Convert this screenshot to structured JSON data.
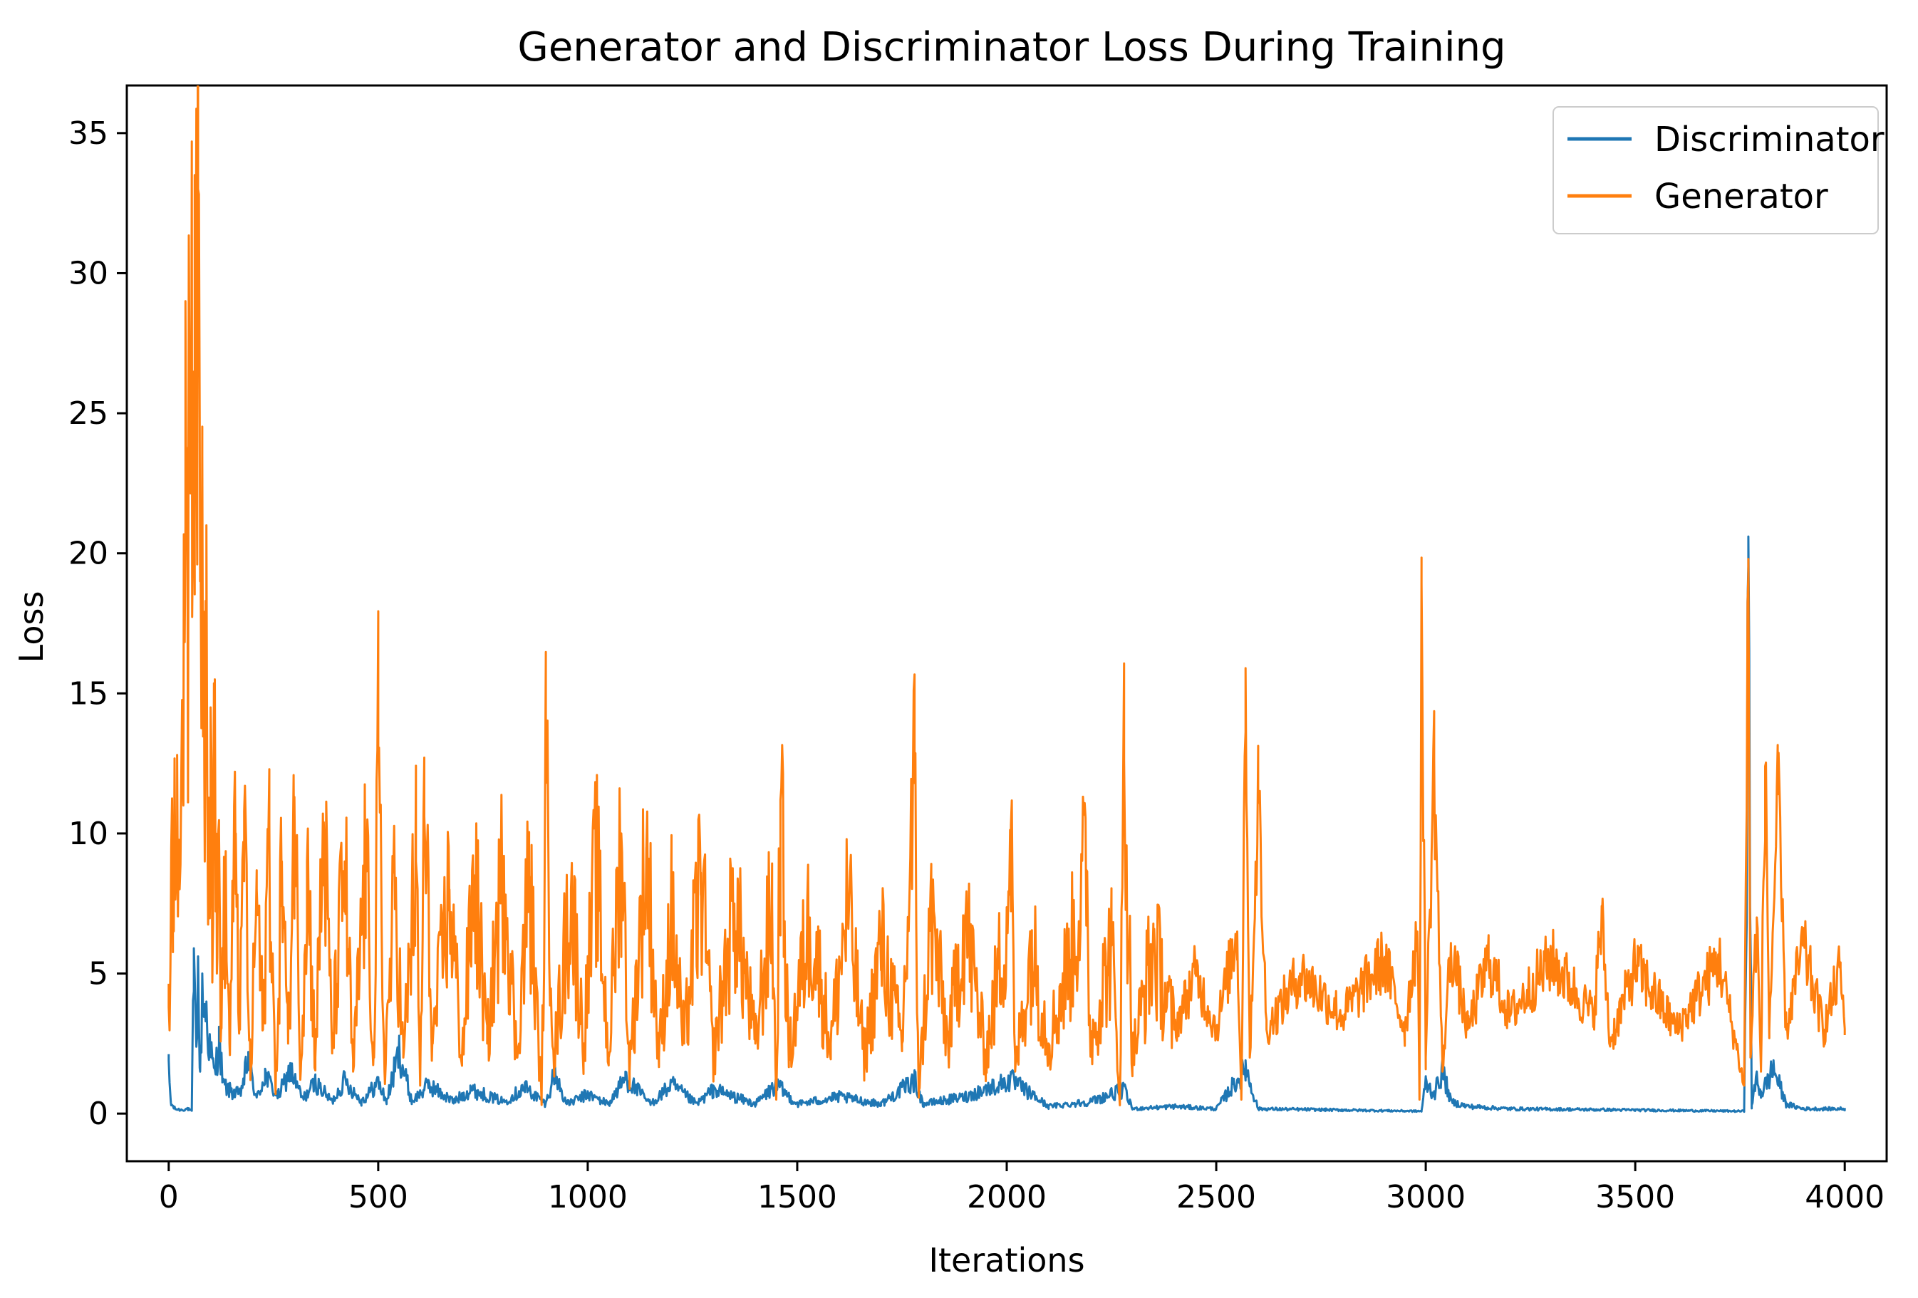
{
  "chart_data": {
    "type": "line",
    "title": "Generator and Discriminator Loss During Training",
    "xlabel": "Iterations",
    "ylabel": "Loss",
    "xlim": [
      -100,
      4100
    ],
    "ylim": [
      -1.7,
      36.7
    ],
    "xticks": [
      0,
      500,
      1000,
      1500,
      2000,
      2500,
      3000,
      3500,
      4000
    ],
    "xtick_labels": [
      "0",
      "500",
      "1000",
      "1500",
      "2000",
      "2500",
      "3000",
      "3500",
      "4000"
    ],
    "yticks": [
      0,
      5,
      10,
      15,
      20,
      25,
      30,
      35
    ],
    "ytick_labels": [
      "0",
      "5",
      "10",
      "15",
      "20",
      "25",
      "30",
      "35"
    ],
    "grid": false,
    "legend_position": "top-right",
    "series": [
      {
        "name": "Discriminator",
        "color": "#1f77b4",
        "points": [
          [
            0,
            1.9
          ],
          [
            5,
            0.4
          ],
          [
            15,
            0.2
          ],
          [
            30,
            0.15
          ],
          [
            45,
            0.2
          ],
          [
            55,
            0.1
          ],
          [
            60,
            5.9
          ],
          [
            65,
            3.0
          ],
          [
            70,
            5.6
          ],
          [
            75,
            1.5
          ],
          [
            80,
            5.0
          ],
          [
            90,
            4.0
          ],
          [
            100,
            2.5
          ],
          [
            110,
            1.6
          ],
          [
            120,
            3.1
          ],
          [
            130,
            1.2
          ],
          [
            150,
            0.9
          ],
          [
            170,
            0.8
          ],
          [
            190,
            2.2
          ],
          [
            210,
            0.6
          ],
          [
            230,
            1.6
          ],
          [
            260,
            0.7
          ],
          [
            290,
            1.8
          ],
          [
            320,
            0.6
          ],
          [
            350,
            1.3
          ],
          [
            390,
            0.5
          ],
          [
            420,
            1.4
          ],
          [
            460,
            0.5
          ],
          [
            500,
            1.3
          ],
          [
            520,
            0.5
          ],
          [
            550,
            2.6
          ],
          [
            580,
            0.5
          ],
          [
            620,
            1.2
          ],
          [
            680,
            0.5
          ],
          [
            720,
            1.0
          ],
          [
            800,
            0.5
          ],
          [
            850,
            1.1
          ],
          [
            900,
            0.4
          ],
          [
            920,
            1.7
          ],
          [
            950,
            0.4
          ],
          [
            1000,
            0.8
          ],
          [
            1050,
            0.4
          ],
          [
            1090,
            1.5
          ],
          [
            1150,
            0.4
          ],
          [
            1200,
            1.2
          ],
          [
            1260,
            0.4
          ],
          [
            1300,
            1.0
          ],
          [
            1400,
            0.4
          ],
          [
            1450,
            1.2
          ],
          [
            1500,
            0.4
          ],
          [
            1600,
            0.7
          ],
          [
            1700,
            0.4
          ],
          [
            1780,
            1.4
          ],
          [
            1800,
            0.4
          ],
          [
            1900,
            0.7
          ],
          [
            2010,
            1.4
          ],
          [
            2100,
            0.3
          ],
          [
            2200,
            0.5
          ],
          [
            2280,
            1.0
          ],
          [
            2300,
            0.2
          ],
          [
            2400,
            0.3
          ],
          [
            2500,
            0.2
          ],
          [
            2570,
            1.9
          ],
          [
            2600,
            0.2
          ],
          [
            2800,
            0.15
          ],
          [
            2990,
            0.1
          ],
          [
            3000,
            1.3
          ],
          [
            3020,
            0.8
          ],
          [
            3040,
            1.8
          ],
          [
            3060,
            0.5
          ],
          [
            3100,
            0.3
          ],
          [
            3200,
            0.2
          ],
          [
            3500,
            0.15
          ],
          [
            3760,
            0.1
          ],
          [
            3770,
            20.6
          ],
          [
            3778,
            0.3
          ],
          [
            3790,
            1.5
          ],
          [
            3800,
            0.8
          ],
          [
            3830,
            1.9
          ],
          [
            3860,
            0.4
          ],
          [
            3900,
            0.2
          ],
          [
            4000,
            0.2
          ]
        ]
      },
      {
        "name": "Generator",
        "color": "#ff7f0e",
        "points": [
          [
            0,
            3.8
          ],
          [
            5,
            7.0
          ],
          [
            10,
            9.5
          ],
          [
            20,
            12.8
          ],
          [
            25,
            9.0
          ],
          [
            35,
            11.0
          ],
          [
            40,
            29.0
          ],
          [
            45,
            18.0
          ],
          [
            50,
            25.0
          ],
          [
            55,
            34.7
          ],
          [
            58,
            20.0
          ],
          [
            62,
            33.5
          ],
          [
            66,
            25.0
          ],
          [
            70,
            33.0
          ],
          [
            75,
            19.0
          ],
          [
            80,
            23.5
          ],
          [
            85,
            12.0
          ],
          [
            90,
            21.0
          ],
          [
            95,
            9.0
          ],
          [
            100,
            14.5
          ],
          [
            105,
            6.0
          ],
          [
            110,
            15.5
          ],
          [
            115,
            5.0
          ],
          [
            120,
            10.0
          ],
          [
            125,
            3.0
          ],
          [
            135,
            8.0
          ],
          [
            145,
            2.5
          ],
          [
            160,
            10.0
          ],
          [
            170,
            3.0
          ],
          [
            180,
            10.8
          ],
          [
            195,
            1.2
          ],
          [
            210,
            8.0
          ],
          [
            225,
            3.0
          ],
          [
            240,
            10.4
          ],
          [
            255,
            0.7
          ],
          [
            270,
            9.0
          ],
          [
            285,
            2.5
          ],
          [
            300,
            11.3
          ],
          [
            315,
            1.5
          ],
          [
            330,
            9.0
          ],
          [
            350,
            2.0
          ],
          [
            370,
            10.4
          ],
          [
            390,
            2.5
          ],
          [
            420,
            9.0
          ],
          [
            440,
            1.5
          ],
          [
            470,
            9.0
          ],
          [
            490,
            2.0
          ],
          [
            500,
            12.6
          ],
          [
            515,
            1.5
          ],
          [
            540,
            8.0
          ],
          [
            560,
            2.0
          ],
          [
            590,
            9.0
          ],
          [
            600,
            1.0
          ],
          [
            610,
            10.6
          ],
          [
            630,
            2.5
          ],
          [
            670,
            8.0
          ],
          [
            700,
            2.0
          ],
          [
            730,
            8.5
          ],
          [
            760,
            2.5
          ],
          [
            800,
            9.2
          ],
          [
            830,
            2.0
          ],
          [
            860,
            8.5
          ],
          [
            890,
            0.5
          ],
          [
            900,
            11.8
          ],
          [
            920,
            2.0
          ],
          [
            960,
            8.0
          ],
          [
            990,
            2.5
          ],
          [
            1020,
            9.0
          ],
          [
            1050,
            2.0
          ],
          [
            1080,
            10.0
          ],
          [
            1100,
            1.5
          ],
          [
            1140,
            9.4
          ],
          [
            1170,
            2.0
          ],
          [
            1200,
            7.0
          ],
          [
            1230,
            2.5
          ],
          [
            1270,
            8.6
          ],
          [
            1300,
            2.0
          ],
          [
            1350,
            7.5
          ],
          [
            1400,
            2.5
          ],
          [
            1440,
            7.5
          ],
          [
            1450,
            0.5
          ],
          [
            1460,
            11.2
          ],
          [
            1480,
            2.0
          ],
          [
            1530,
            7.0
          ],
          [
            1580,
            2.5
          ],
          [
            1620,
            7.5
          ],
          [
            1660,
            2.0
          ],
          [
            1700,
            6.0
          ],
          [
            1750,
            2.5
          ],
          [
            1780,
            11.8
          ],
          [
            1790,
            0.8
          ],
          [
            1820,
            7.0
          ],
          [
            1860,
            2.5
          ],
          [
            1900,
            7.0
          ],
          [
            1950,
            2.0
          ],
          [
            2000,
            7.0
          ],
          [
            2010,
            10.3
          ],
          [
            2020,
            1.5
          ],
          [
            2060,
            6.0
          ],
          [
            2100,
            2.5
          ],
          [
            2150,
            5.5
          ],
          [
            2190,
            8.7
          ],
          [
            2200,
            2.5
          ],
          [
            2250,
            6.0
          ],
          [
            2270,
            0.5
          ],
          [
            2280,
            12.6
          ],
          [
            2300,
            2.0
          ],
          [
            2350,
            6.0
          ],
          [
            2400,
            3.0
          ],
          [
            2450,
            5.0
          ],
          [
            2500,
            3.0
          ],
          [
            2550,
            6.5
          ],
          [
            2560,
            0.5
          ],
          [
            2570,
            15.9
          ],
          [
            2580,
            2.0
          ],
          [
            2600,
            11.5
          ],
          [
            2620,
            3.0
          ],
          [
            2700,
            5.0
          ],
          [
            2800,
            3.5
          ],
          [
            2900,
            5.5
          ],
          [
            2950,
            3.0
          ],
          [
            2980,
            6.5
          ],
          [
            2985,
            0.5
          ],
          [
            2990,
            18.9
          ],
          [
            3000,
            2.0
          ],
          [
            3020,
            12.6
          ],
          [
            3040,
            1.5
          ],
          [
            3060,
            6.0
          ],
          [
            3100,
            3.0
          ],
          [
            3150,
            5.5
          ],
          [
            3200,
            3.5
          ],
          [
            3300,
            5.5
          ],
          [
            3400,
            3.5
          ],
          [
            3420,
            6.9
          ],
          [
            3440,
            2.5
          ],
          [
            3500,
            5.3
          ],
          [
            3600,
            3.0
          ],
          [
            3700,
            5.5
          ],
          [
            3760,
            1.0
          ],
          [
            3770,
            19.8
          ],
          [
            3775,
            2.0
          ],
          [
            3790,
            7.0
          ],
          [
            3800,
            1.5
          ],
          [
            3810,
            12.4
          ],
          [
            3820,
            3.0
          ],
          [
            3840,
            11.4
          ],
          [
            3860,
            3.0
          ],
          [
            3900,
            6.0
          ],
          [
            3950,
            3.0
          ],
          [
            3990,
            5.2
          ],
          [
            4000,
            2.8
          ]
        ]
      }
    ]
  }
}
